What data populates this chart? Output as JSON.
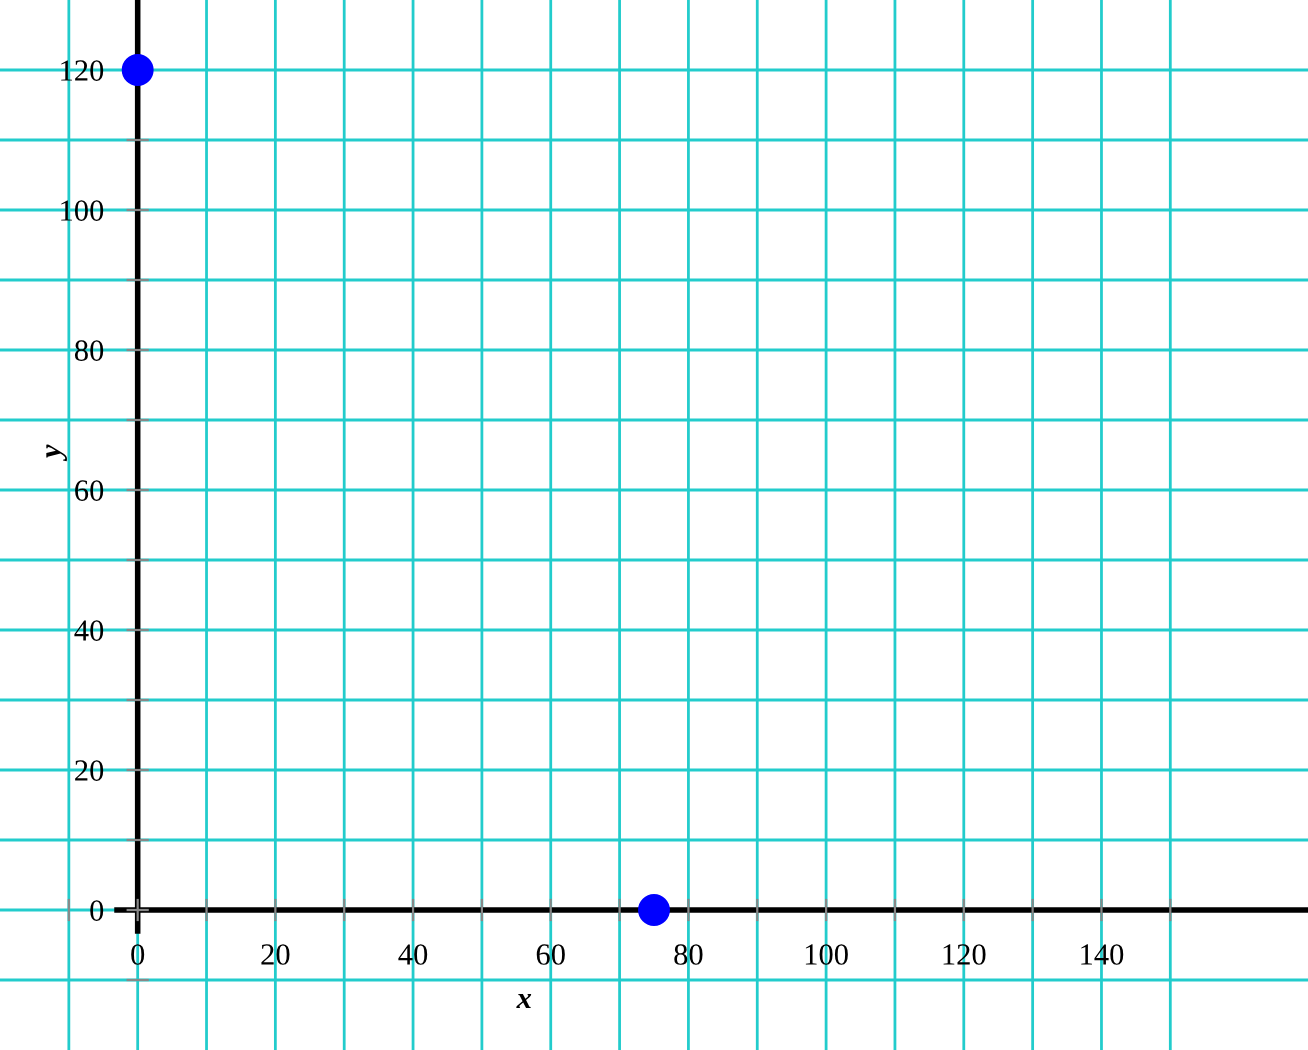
{
  "chart_data": {
    "type": "scatter",
    "xlabel": "x",
    "ylabel": "y",
    "x": [
      0,
      75
    ],
    "values": [
      120,
      0
    ],
    "color": "#0000ff",
    "marker": "circle",
    "xlim": [
      -20,
      170
    ],
    "ylim": [
      -20,
      130
    ],
    "xticks": [
      {
        "value": -10,
        "label": null
      },
      0,
      {
        "value": 10,
        "label": null
      },
      20,
      {
        "value": 30,
        "label": null
      },
      40,
      {
        "value": 50,
        "label": null
      },
      60,
      {
        "value": 70,
        "label": null
      },
      80,
      {
        "value": 90,
        "label": null
      },
      100,
      {
        "value": 110,
        "label": null
      },
      120,
      {
        "value": 130,
        "label": null
      },
      140,
      {
        "value": 150,
        "label": null
      }
    ],
    "yticks": [
      {
        "value": -10,
        "label": null
      },
      0,
      {
        "value": 10,
        "label": null
      },
      20,
      {
        "value": 30,
        "label": null
      },
      40,
      {
        "value": 50,
        "label": null
      },
      60,
      {
        "value": 70,
        "label": null
      },
      80,
      {
        "value": 90,
        "label": null
      },
      100,
      {
        "value": 110,
        "label": null
      },
      120
    ],
    "grid": true
  }
}
